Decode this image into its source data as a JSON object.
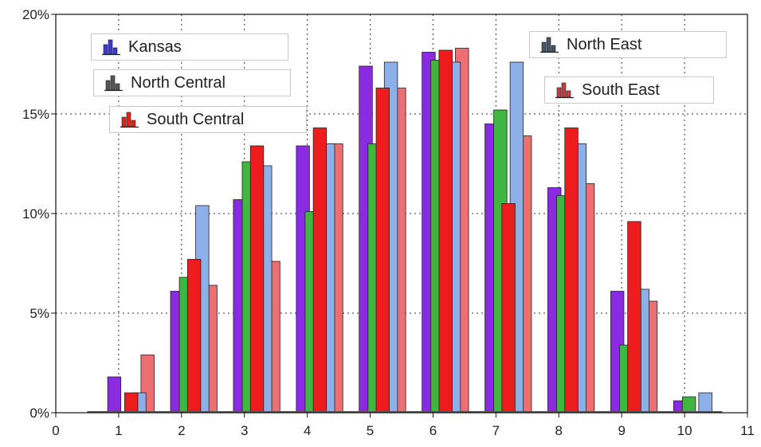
{
  "chart_data": {
    "type": "bar",
    "title": "",
    "xlabel": "",
    "ylabel": "",
    "xlim": [
      0,
      11
    ],
    "ylim": [
      0,
      20
    ],
    "x_ticks": [
      "0",
      "1",
      "2",
      "3",
      "4",
      "5",
      "6",
      "7",
      "8",
      "9",
      "10",
      "11"
    ],
    "y_ticks": [
      "0%",
      "5%",
      "10%",
      "15%",
      "20%"
    ],
    "grid": true,
    "categories": [
      1,
      2,
      3,
      4,
      5,
      6,
      7,
      8,
      9,
      10
    ],
    "series": [
      {
        "name": "Kansas",
        "color": "#8a2be2",
        "values": [
          1.8,
          6.1,
          10.7,
          13.4,
          17.4,
          18.1,
          14.5,
          11.3,
          6.1,
          0.6
        ]
      },
      {
        "name": "North Central",
        "color": "#3fb63f",
        "values": [
          0,
          6.8,
          12.6,
          10.1,
          13.5,
          17.7,
          15.2,
          10.9,
          3.4,
          0.8
        ]
      },
      {
        "name": "South Central",
        "color": "#ee1c1c",
        "values": [
          1.0,
          7.7,
          13.4,
          14.3,
          16.3,
          18.2,
          10.5,
          14.3,
          9.6,
          0
        ]
      },
      {
        "name": "North East",
        "color": "#8eb0e8",
        "values": [
          1.0,
          10.4,
          12.4,
          13.5,
          17.6,
          17.6,
          17.6,
          13.5,
          6.2,
          1.0
        ]
      },
      {
        "name": "South East",
        "color": "#ee6f72",
        "values": [
          2.9,
          6.4,
          7.6,
          13.5,
          16.3,
          18.3,
          13.9,
          11.5,
          5.6,
          0
        ]
      }
    ],
    "legend": [
      {
        "label": "Kansas",
        "icon": "bar-chart-icon",
        "color": "#3b3bd0"
      },
      {
        "label": "North Central",
        "icon": "bar-chart-icon",
        "color": "#555555"
      },
      {
        "label": "South Central",
        "icon": "bar-chart-icon",
        "color": "#ee1c1c"
      },
      {
        "label": "North East",
        "icon": "bar-chart-icon",
        "color": "#445566"
      },
      {
        "label": "South East",
        "icon": "bar-chart-icon",
        "color": "#c04040"
      }
    ]
  }
}
